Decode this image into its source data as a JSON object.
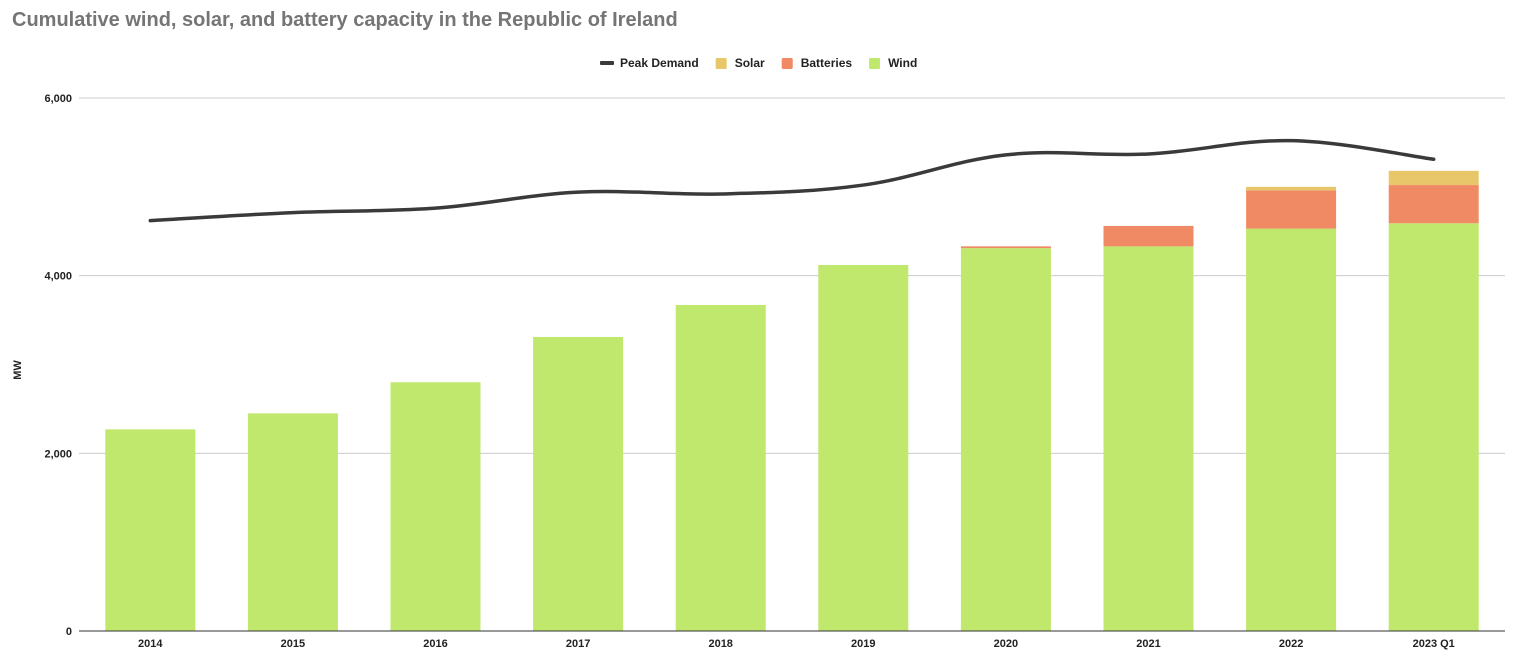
{
  "chart_data": {
    "type": "bar",
    "stacked": true,
    "title": "Cumulative wind, solar, and battery capacity in the Republic of Ireland",
    "xlabel": "",
    "ylabel": "MW",
    "ylim": [
      0,
      6000
    ],
    "yticks": [
      0,
      2000,
      4000,
      6000
    ],
    "ytick_labels": [
      "0",
      "2,000",
      "4,000",
      "6,000"
    ],
    "grid": true,
    "legend_position": "top-center",
    "legend_order": [
      "Peak Demand",
      "Solar",
      "Batteries",
      "Wind"
    ],
    "categories": [
      "2014",
      "2015",
      "2016",
      "2017",
      "2018",
      "2019",
      "2020",
      "2021",
      "2022",
      "2023 Q1"
    ],
    "series": [
      {
        "name": "Wind",
        "kind": "bar",
        "color": "#bfe86d",
        "values": [
          2270,
          2450,
          2800,
          3310,
          3670,
          4120,
          4310,
          4330,
          4530,
          4590
        ]
      },
      {
        "name": "Batteries",
        "kind": "bar",
        "color": "#f08a65",
        "values": [
          0,
          0,
          0,
          0,
          0,
          0,
          20,
          230,
          430,
          430
        ]
      },
      {
        "name": "Solar",
        "kind": "bar",
        "color": "#e8c76a",
        "values": [
          0,
          0,
          0,
          0,
          0,
          0,
          0,
          0,
          40,
          160
        ]
      },
      {
        "name": "Peak Demand",
        "kind": "line",
        "color": "#3a3a3a",
        "values": [
          4620,
          4710,
          4760,
          4940,
          4920,
          5020,
          5360,
          5370,
          5520,
          5310
        ]
      }
    ]
  }
}
